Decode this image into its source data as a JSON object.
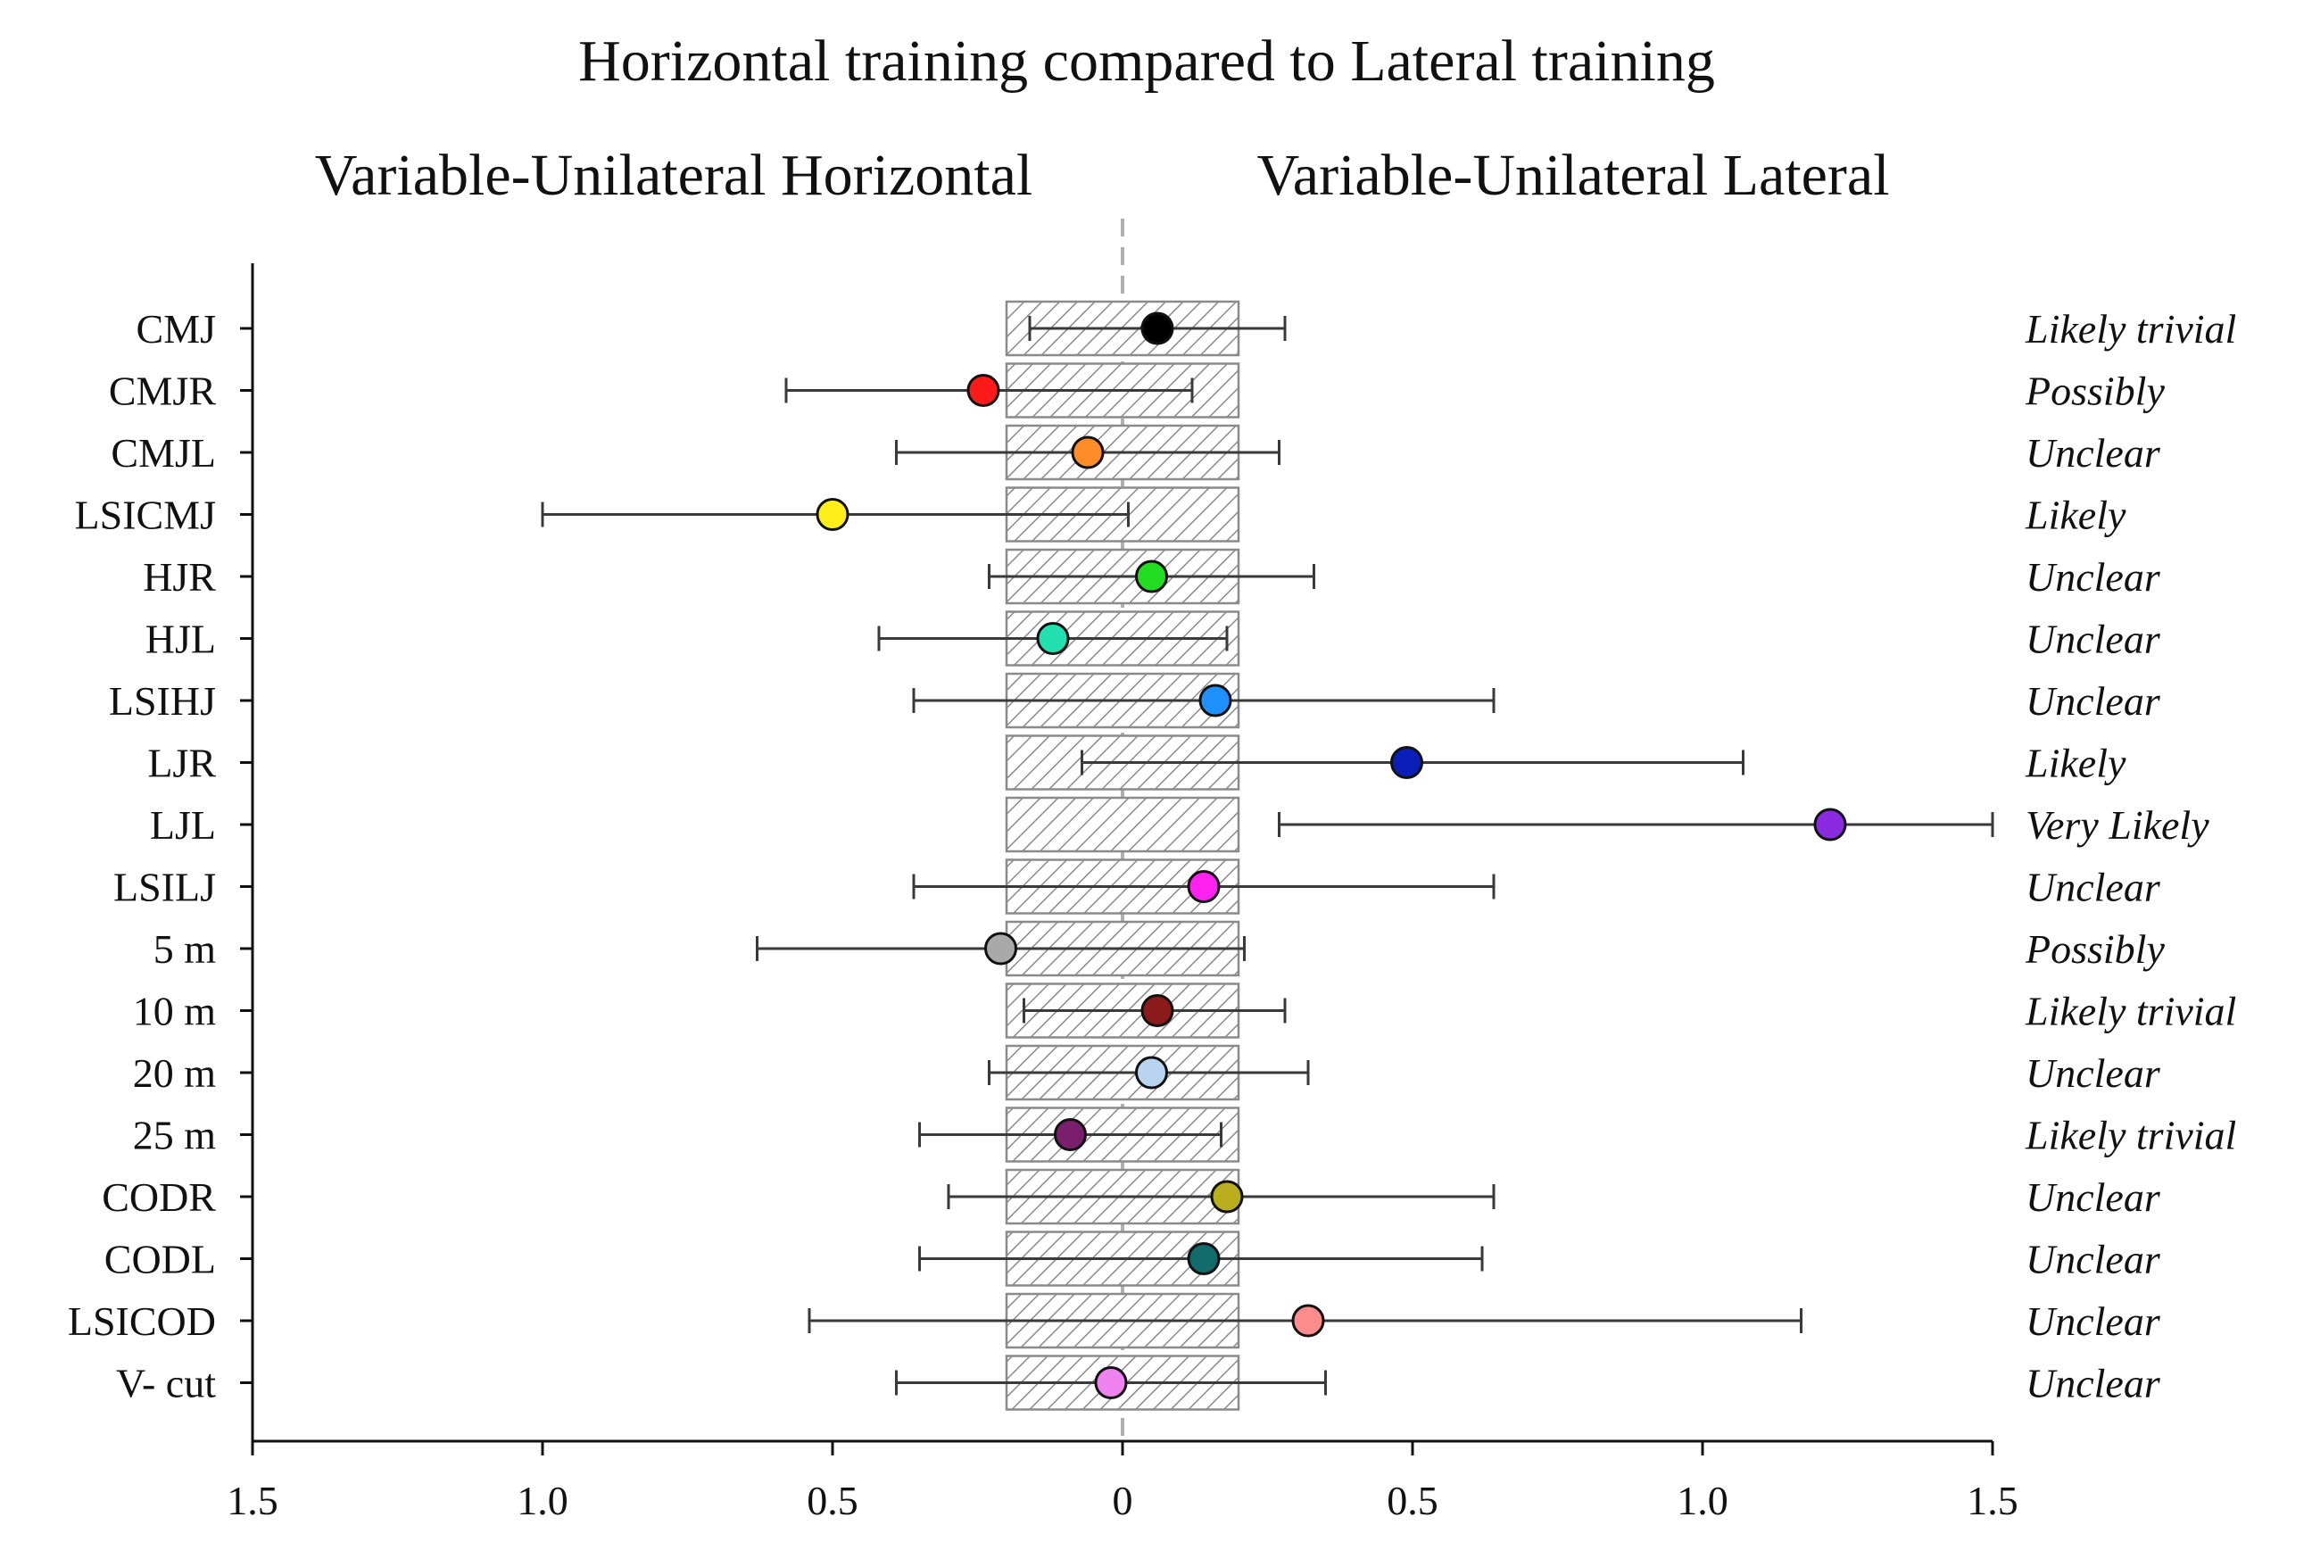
{
  "chart_data": {
    "type": "forest",
    "title": "Horizontal training compared to Lateral training",
    "left_label": "Variable-Unilateral Horizontal",
    "right_label": "Variable-Unilateral Lateral",
    "xlim": [
      -1.5,
      1.5
    ],
    "x_ticks": [
      -1.5,
      -1.0,
      -0.5,
      0,
      0.5,
      1.0,
      1.5
    ],
    "x_tick_labels": [
      "1.5",
      "1.0",
      "0.5",
      "0",
      "0.5",
      "1.0",
      "1.5"
    ],
    "trivial_zone": [
      -0.2,
      0.2
    ],
    "rows": [
      {
        "label": "CMJ",
        "mean": 0.06,
        "lower": -0.16,
        "upper": 0.28,
        "outcome": "Likely trivial",
        "color": "#000000"
      },
      {
        "label": "CMJR",
        "mean": -0.24,
        "lower": -0.58,
        "upper": 0.12,
        "outcome": "Possibly",
        "color": "#ff1a1a"
      },
      {
        "label": "CMJL",
        "mean": -0.06,
        "lower": -0.39,
        "upper": 0.27,
        "outcome": "Unclear",
        "color": "#ff8c26"
      },
      {
        "label": "LSICMJ",
        "mean": -0.5,
        "lower": -1.0,
        "upper": 0.01,
        "outcome": "Likely",
        "color": "#ffee1a"
      },
      {
        "label": "HJR",
        "mean": 0.05,
        "lower": -0.23,
        "upper": 0.33,
        "outcome": "Unclear",
        "color": "#22dd22"
      },
      {
        "label": "HJL",
        "mean": -0.12,
        "lower": -0.42,
        "upper": 0.18,
        "outcome": "Unclear",
        "color": "#22e0b0"
      },
      {
        "label": "LSIHJ",
        "mean": 0.16,
        "lower": -0.36,
        "upper": 0.64,
        "outcome": "Unclear",
        "color": "#1e90ff"
      },
      {
        "label": "LJR",
        "mean": 0.49,
        "lower": -0.07,
        "upper": 1.07,
        "outcome": "Likely",
        "color": "#0a1fb8"
      },
      {
        "label": "LJL",
        "mean": 1.22,
        "lower": 0.27,
        "upper": 1.5,
        "outcome": "Very Likely",
        "color": "#8a2be2"
      },
      {
        "label": "LSILJ",
        "mean": 0.14,
        "lower": -0.36,
        "upper": 0.64,
        "outcome": "Unclear",
        "color": "#ff22ee"
      },
      {
        "label": "5 m",
        "mean": -0.21,
        "lower": -0.63,
        "upper": 0.21,
        "outcome": "Possibly",
        "color": "#a9a9a9"
      },
      {
        "label": "10 m",
        "mean": 0.06,
        "lower": -0.17,
        "upper": 0.28,
        "outcome": "Likely trivial",
        "color": "#8b1a1a"
      },
      {
        "label": "20 m",
        "mean": 0.05,
        "lower": -0.23,
        "upper": 0.32,
        "outcome": "Unclear",
        "color": "#b8d4ee"
      },
      {
        "label": "25 m",
        "mean": -0.09,
        "lower": -0.35,
        "upper": 0.17,
        "outcome": "Likely trivial",
        "color": "#7a1e6e"
      },
      {
        "label": "CODR",
        "mean": 0.18,
        "lower": -0.3,
        "upper": 0.64,
        "outcome": "Unclear",
        "color": "#b8ae1e"
      },
      {
        "label": "CODL",
        "mean": 0.14,
        "lower": -0.35,
        "upper": 0.62,
        "outcome": "Unclear",
        "color": "#126b6b"
      },
      {
        "label": "LSICOD",
        "mean": 0.32,
        "lower": -0.54,
        "upper": 1.17,
        "outcome": "Unclear",
        "color": "#ff8c8c"
      },
      {
        "label": "V- cut",
        "mean": -0.02,
        "lower": -0.39,
        "upper": 0.35,
        "outcome": "Unclear",
        "color": "#ee82ee"
      }
    ]
  }
}
